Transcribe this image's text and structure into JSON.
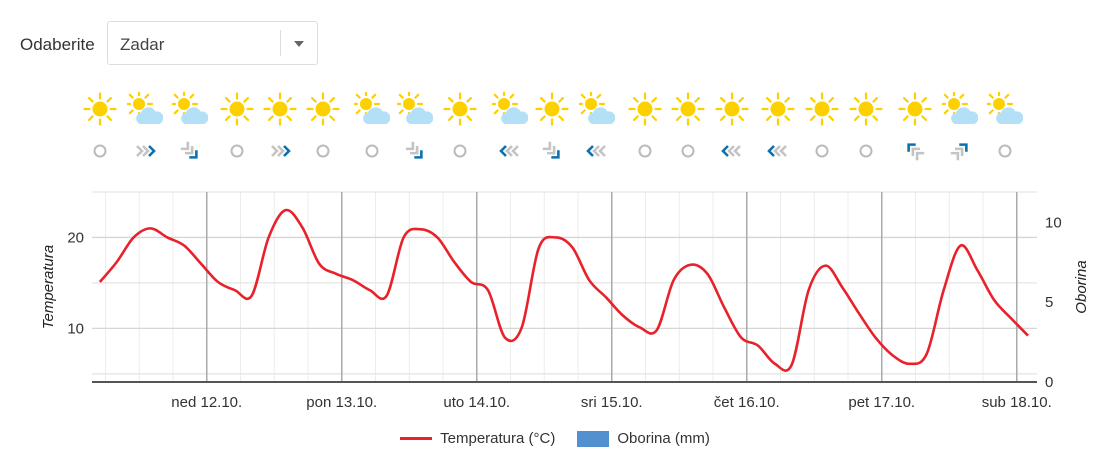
{
  "selector": {
    "label": "Odaberite",
    "value": "Zadar"
  },
  "forecast_icons": {
    "weather": [
      "sun",
      "partly-cloudy",
      "partly-cloudy",
      "sun",
      "sun",
      "sun",
      "partly-cloudy",
      "partly-cloudy",
      "sun",
      "partly-cloudy",
      "sun",
      "partly-cloudy",
      "sun",
      "sun",
      "sun",
      "sun",
      "sun",
      "sun",
      "sun",
      "partly-cloudy",
      "partly-cloudy"
    ],
    "wind": [
      "calm",
      "wind-e",
      "wind-se",
      "calm",
      "wind-e",
      "calm",
      "calm",
      "wind-se",
      "calm",
      "wind-w",
      "wind-se",
      "wind-w",
      "calm",
      "calm",
      "wind-w",
      "wind-w",
      "calm",
      "calm",
      "wind-nw",
      "wind-ne",
      "calm"
    ]
  },
  "colors": {
    "temperature": "#e8212b",
    "precipitation": "#5390d0",
    "sun": "#fdd000",
    "cloud": "#b3e0f7",
    "wind_accent": "#0a72b0",
    "wind_gray": "#c4c4c4"
  },
  "chart_data": {
    "type": "line",
    "x_unit": "hours from first sample (3-hour steps)",
    "x": [
      0,
      3,
      6,
      9,
      12,
      15,
      18,
      21,
      24,
      27,
      30,
      33,
      36,
      39,
      42,
      45,
      48,
      51,
      54,
      57,
      60,
      63,
      66,
      69,
      72,
      75,
      78,
      81,
      84,
      87,
      90,
      93,
      96,
      99,
      102,
      105,
      108,
      111,
      114,
      117,
      120,
      123,
      126,
      129,
      132,
      135,
      138,
      141,
      144,
      147,
      150,
      153,
      156,
      159,
      162,
      165
    ],
    "day_boundaries_x": [
      19,
      43,
      67,
      91,
      115,
      139,
      163
    ],
    "categories": [
      "ned 12.10.",
      "pon 13.10.",
      "uto 14.10.",
      "sri 15.10.",
      "čet 16.10.",
      "pet 17.10.",
      "sub 18.10."
    ],
    "series": [
      {
        "name": "Temperatura (°C)",
        "axis": "left",
        "values": [
          15.1,
          17.3,
          20.0,
          21.0,
          20.0,
          19.1,
          17.1,
          15.1,
          14.2,
          13.6,
          20.0,
          23.0,
          21.1,
          17.1,
          16.0,
          15.3,
          14.2,
          13.6,
          20.0,
          20.9,
          20.0,
          17.3,
          15.1,
          14.2,
          9.0,
          10.1,
          18.8,
          20.0,
          18.9,
          15.3,
          13.4,
          11.4,
          10.1,
          9.8,
          15.3,
          17.0,
          16.0,
          12.3,
          9.0,
          8.1,
          6.1,
          6.0,
          14.2,
          16.9,
          14.5,
          11.6,
          8.9,
          7.0,
          6.1,
          7.2,
          14.2,
          19.1,
          16.4,
          13.1,
          11.1,
          9.2
        ]
      },
      {
        "name": "Oborina (mm)",
        "axis": "right",
        "values": [
          0,
          0,
          0,
          0,
          0,
          0,
          0,
          0,
          0,
          0,
          0,
          0,
          0,
          0,
          0,
          0,
          0,
          0,
          0,
          0,
          0,
          0,
          0,
          0,
          0,
          0,
          0,
          0,
          0,
          0,
          0,
          0,
          0,
          0,
          0,
          0,
          0,
          0,
          0,
          0,
          0,
          0,
          0,
          0,
          0,
          0,
          0,
          0,
          0,
          0,
          0,
          0,
          0,
          0,
          0,
          0
        ]
      }
    ],
    "ylabel": "Temperatura",
    "y2label": "Oborina",
    "ylim": [
      4.1,
      25
    ],
    "y2lim": [
      0,
      11.9
    ],
    "yticks": [
      "10",
      "20"
    ],
    "y2ticks": [
      "0",
      "5",
      "10"
    ],
    "xlim": [
      -1.4,
      166.6
    ],
    "grid": true,
    "legend": "bottom-center"
  }
}
